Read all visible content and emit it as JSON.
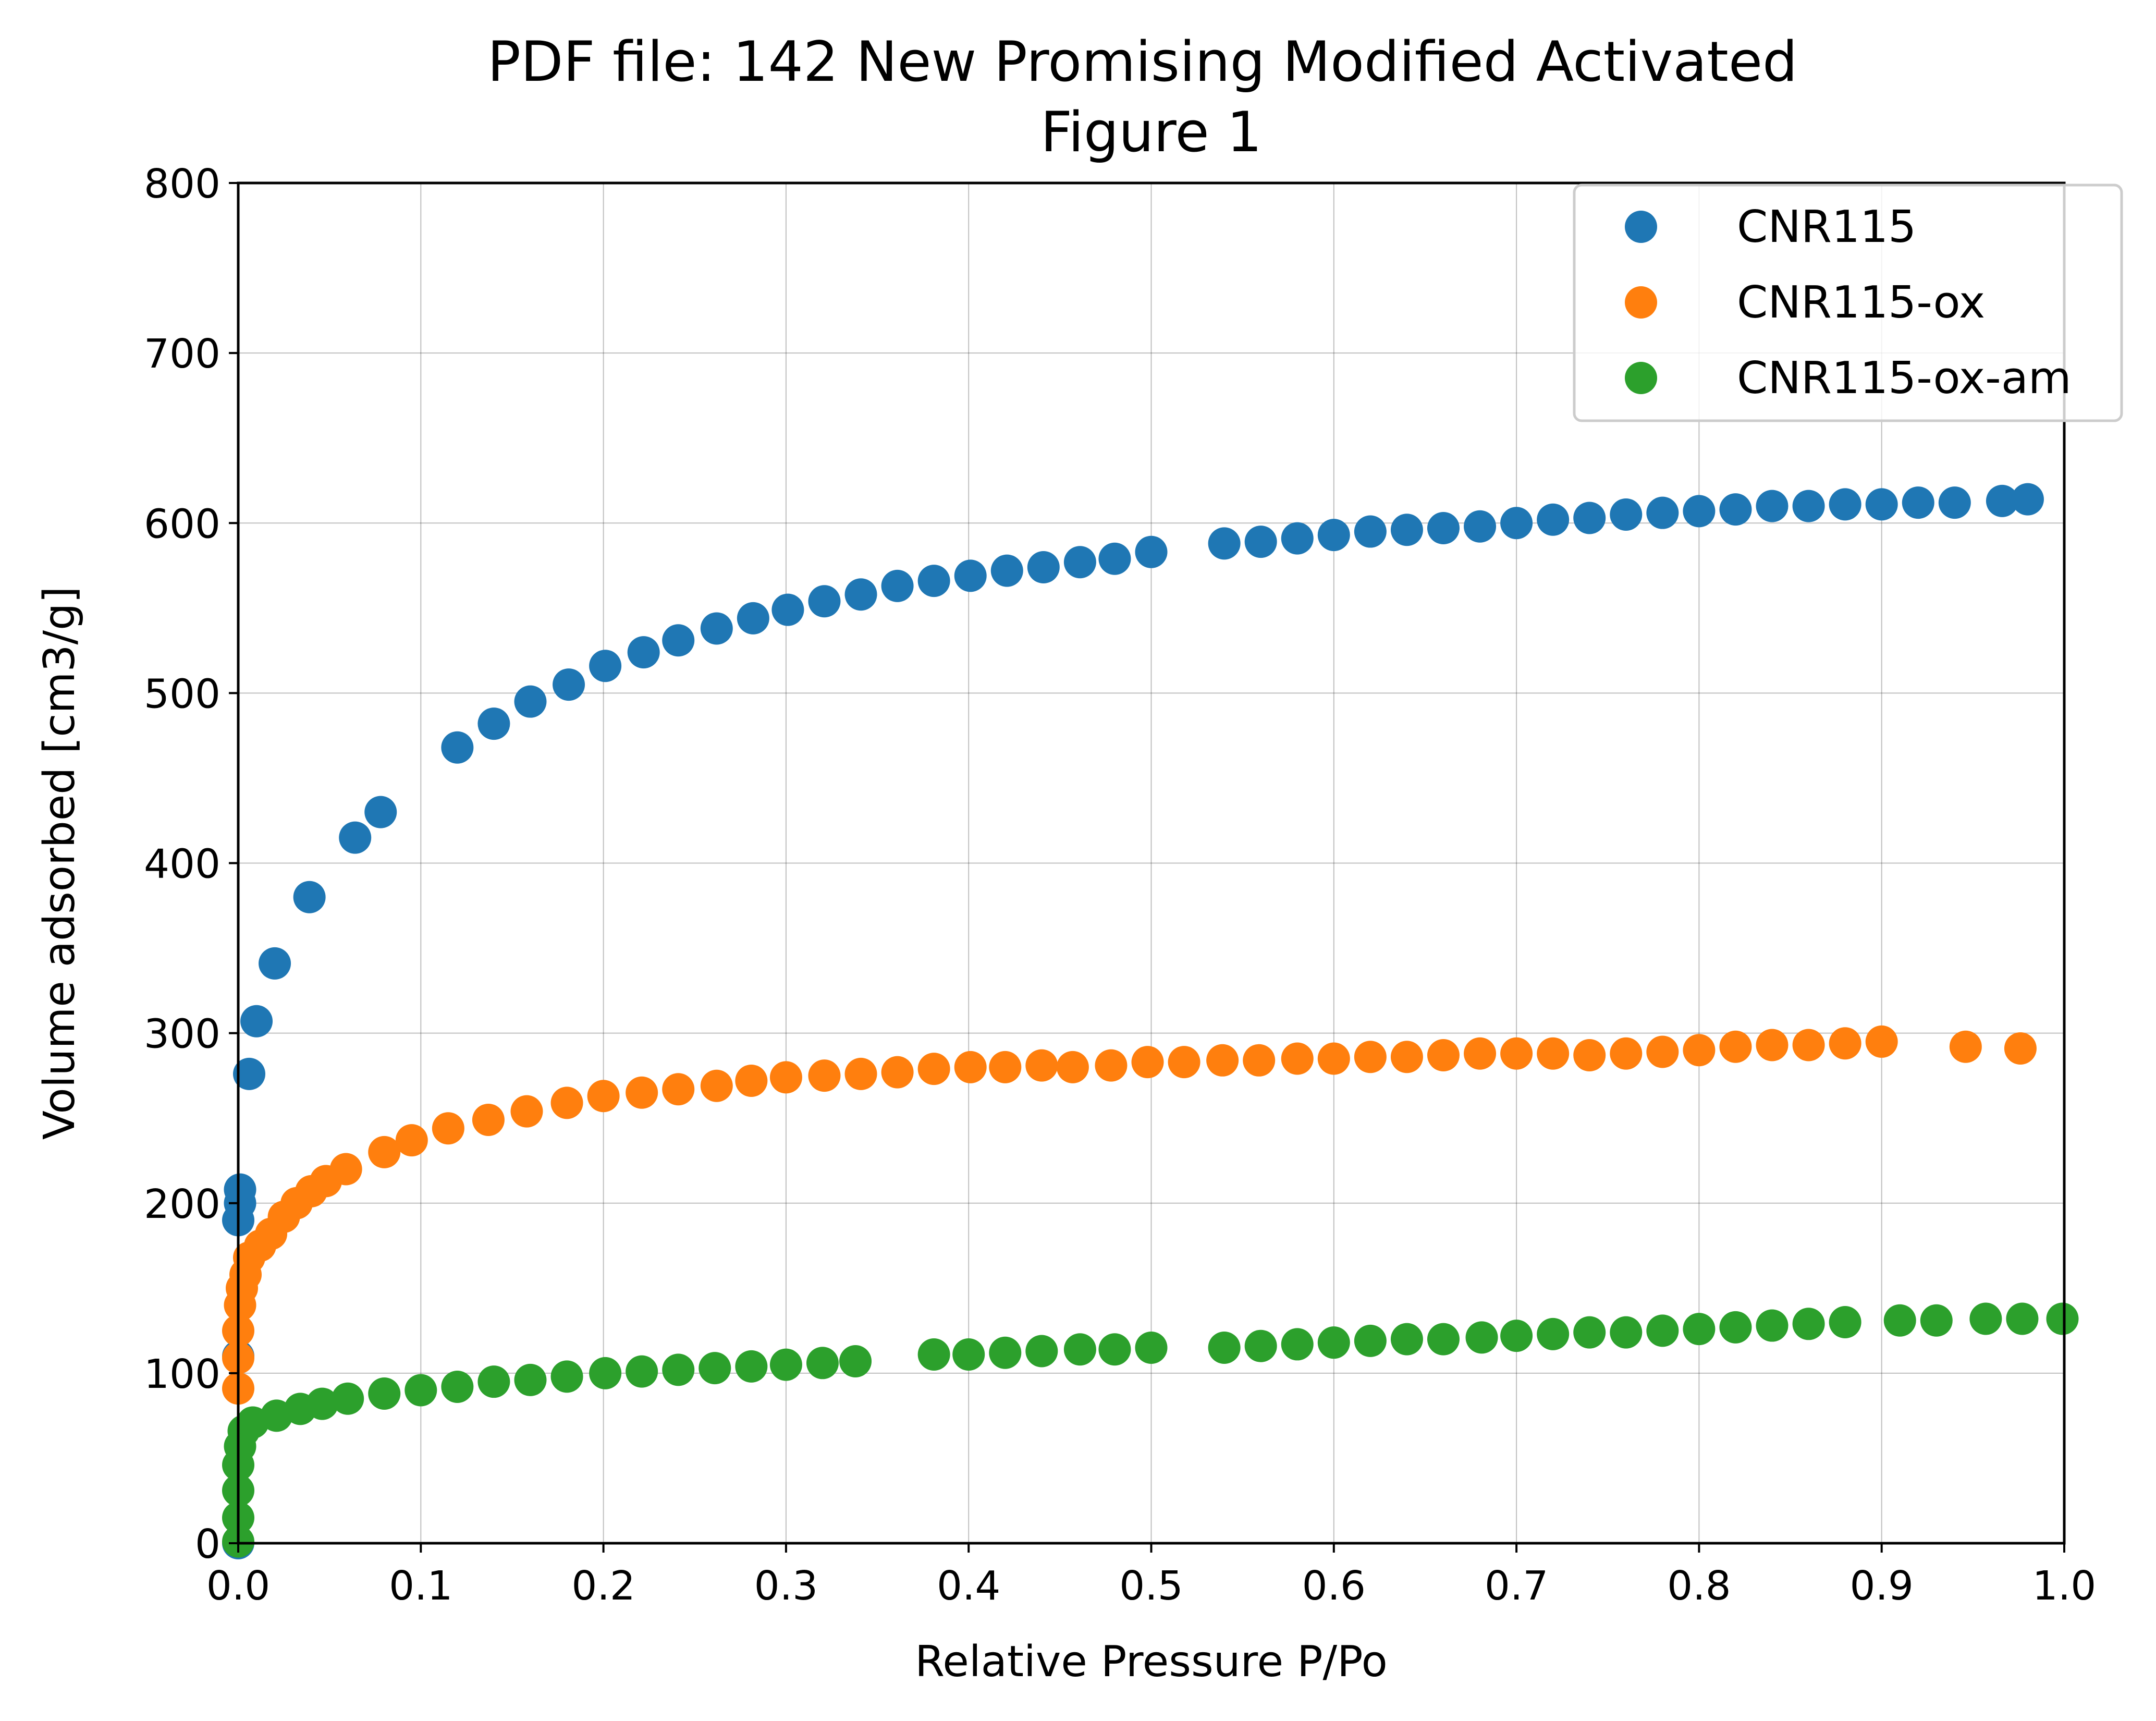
{
  "chart_data": {
    "type": "scatter",
    "title": "PDF file: 142 New Promising Modified Activated\nFigure 1",
    "title_lines": [
      "PDF file: 142 New Promising Modified Activated",
      "Figure 1"
    ],
    "xlabel": "Relative Pressure P/Po",
    "ylabel": "Volume adsorbed [cm3/g]",
    "xlim": [
      0.0,
      1.0
    ],
    "ylim": [
      0,
      800
    ],
    "xticks": [
      "0.0",
      "0.1",
      "0.2",
      "0.3",
      "0.4",
      "0.5",
      "0.6",
      "0.7",
      "0.8",
      "0.9",
      "1.0"
    ],
    "yticks": [
      "0",
      "100",
      "200",
      "300",
      "400",
      "500",
      "600",
      "700",
      "800"
    ],
    "grid": true,
    "legend_position": "top-right",
    "series": [
      {
        "name": "CNR115",
        "color": "#1f77b4",
        "points": [
          [
            0.0,
            0
          ],
          [
            0.0,
            110
          ],
          [
            0.0,
            190
          ],
          [
            0.001,
            200
          ],
          [
            0.001,
            208
          ],
          [
            0.006,
            276
          ],
          [
            0.01,
            307
          ],
          [
            0.02,
            341
          ],
          [
            0.039,
            380
          ],
          [
            0.064,
            415
          ],
          [
            0.078,
            430
          ],
          [
            0.12,
            468
          ],
          [
            0.14,
            482
          ],
          [
            0.16,
            495
          ],
          [
            0.181,
            505
          ],
          [
            0.201,
            516
          ],
          [
            0.222,
            524
          ],
          [
            0.241,
            531
          ],
          [
            0.262,
            538
          ],
          [
            0.282,
            544
          ],
          [
            0.301,
            549
          ],
          [
            0.321,
            554
          ],
          [
            0.341,
            558
          ],
          [
            0.361,
            563
          ],
          [
            0.381,
            566
          ],
          [
            0.401,
            569
          ],
          [
            0.421,
            572
          ],
          [
            0.441,
            574
          ],
          [
            0.461,
            577
          ],
          [
            0.48,
            579
          ],
          [
            0.5,
            583
          ],
          [
            0.54,
            588
          ],
          [
            0.56,
            589
          ],
          [
            0.58,
            591
          ],
          [
            0.6,
            593
          ],
          [
            0.62,
            595
          ],
          [
            0.64,
            596
          ],
          [
            0.66,
            597
          ],
          [
            0.68,
            598
          ],
          [
            0.7,
            600
          ],
          [
            0.72,
            602
          ],
          [
            0.74,
            603
          ],
          [
            0.76,
            605
          ],
          [
            0.78,
            606
          ],
          [
            0.8,
            607
          ],
          [
            0.82,
            608
          ],
          [
            0.84,
            610
          ],
          [
            0.86,
            610
          ],
          [
            0.88,
            611
          ],
          [
            0.9,
            611
          ],
          [
            0.92,
            612
          ],
          [
            0.94,
            612
          ],
          [
            0.966,
            613
          ],
          [
            0.98,
            614
          ]
        ]
      },
      {
        "name": "CNR115-ox",
        "color": "#ff7f0e",
        "points": [
          [
            0.0,
            91
          ],
          [
            0.0,
            109
          ],
          [
            0.0,
            125
          ],
          [
            0.001,
            140
          ],
          [
            0.002,
            150
          ],
          [
            0.004,
            158
          ],
          [
            0.006,
            168
          ],
          [
            0.012,
            175
          ],
          [
            0.018,
            182
          ],
          [
            0.025,
            192
          ],
          [
            0.032,
            200
          ],
          [
            0.04,
            207
          ],
          [
            0.048,
            213
          ],
          [
            0.059,
            220
          ],
          [
            0.08,
            230
          ],
          [
            0.095,
            237
          ],
          [
            0.115,
            244
          ],
          [
            0.137,
            249
          ],
          [
            0.158,
            254
          ],
          [
            0.18,
            259
          ],
          [
            0.2,
            263
          ],
          [
            0.221,
            265
          ],
          [
            0.241,
            267
          ],
          [
            0.262,
            269
          ],
          [
            0.281,
            272
          ],
          [
            0.3,
            274
          ],
          [
            0.321,
            275
          ],
          [
            0.341,
            276
          ],
          [
            0.361,
            277
          ],
          [
            0.381,
            279
          ],
          [
            0.401,
            280
          ],
          [
            0.42,
            280
          ],
          [
            0.44,
            281
          ],
          [
            0.457,
            280
          ],
          [
            0.478,
            281
          ],
          [
            0.498,
            283
          ],
          [
            0.518,
            283
          ],
          [
            0.539,
            284
          ],
          [
            0.559,
            284
          ],
          [
            0.58,
            285
          ],
          [
            0.6,
            285
          ],
          [
            0.62,
            286
          ],
          [
            0.64,
            286
          ],
          [
            0.66,
            287
          ],
          [
            0.68,
            288
          ],
          [
            0.7,
            288
          ],
          [
            0.72,
            288
          ],
          [
            0.74,
            287
          ],
          [
            0.76,
            288
          ],
          [
            0.78,
            289
          ],
          [
            0.8,
            290
          ],
          [
            0.82,
            292
          ],
          [
            0.84,
            293
          ],
          [
            0.86,
            293
          ],
          [
            0.88,
            294
          ],
          [
            0.9,
            295
          ],
          [
            0.946,
            292
          ],
          [
            0.976,
            291
          ]
        ]
      },
      {
        "name": "CNR115-ox-am",
        "color": "#2ca02c",
        "points": [
          [
            0.0,
            1
          ],
          [
            0.0,
            15
          ],
          [
            0.0,
            31
          ],
          [
            0.0,
            46
          ],
          [
            0.001,
            57
          ],
          [
            0.003,
            66
          ],
          [
            0.008,
            71
          ],
          [
            0.021,
            75
          ],
          [
            0.034,
            79
          ],
          [
            0.046,
            82
          ],
          [
            0.06,
            85
          ],
          [
            0.08,
            88
          ],
          [
            0.1,
            90
          ],
          [
            0.12,
            92
          ],
          [
            0.14,
            95
          ],
          [
            0.16,
            96
          ],
          [
            0.18,
            98
          ],
          [
            0.201,
            100
          ],
          [
            0.221,
            101
          ],
          [
            0.241,
            102
          ],
          [
            0.261,
            103
          ],
          [
            0.281,
            104
          ],
          [
            0.3,
            105
          ],
          [
            0.32,
            106
          ],
          [
            0.338,
            107
          ],
          [
            0.381,
            111
          ],
          [
            0.4,
            111
          ],
          [
            0.42,
            112
          ],
          [
            0.44,
            113
          ],
          [
            0.461,
            114
          ],
          [
            0.48,
            114
          ],
          [
            0.5,
            115
          ],
          [
            0.54,
            115
          ],
          [
            0.56,
            116
          ],
          [
            0.58,
            117
          ],
          [
            0.6,
            118
          ],
          [
            0.62,
            119
          ],
          [
            0.64,
            120
          ],
          [
            0.66,
            120
          ],
          [
            0.681,
            121
          ],
          [
            0.7,
            122
          ],
          [
            0.72,
            123
          ],
          [
            0.74,
            124
          ],
          [
            0.76,
            124
          ],
          [
            0.78,
            125
          ],
          [
            0.8,
            126
          ],
          [
            0.82,
            127
          ],
          [
            0.84,
            128
          ],
          [
            0.86,
            129
          ],
          [
            0.88,
            130
          ],
          [
            0.91,
            131
          ],
          [
            0.93,
            131
          ],
          [
            0.957,
            132
          ],
          [
            0.977,
            132
          ],
          [
            0.999,
            132
          ]
        ]
      }
    ]
  }
}
